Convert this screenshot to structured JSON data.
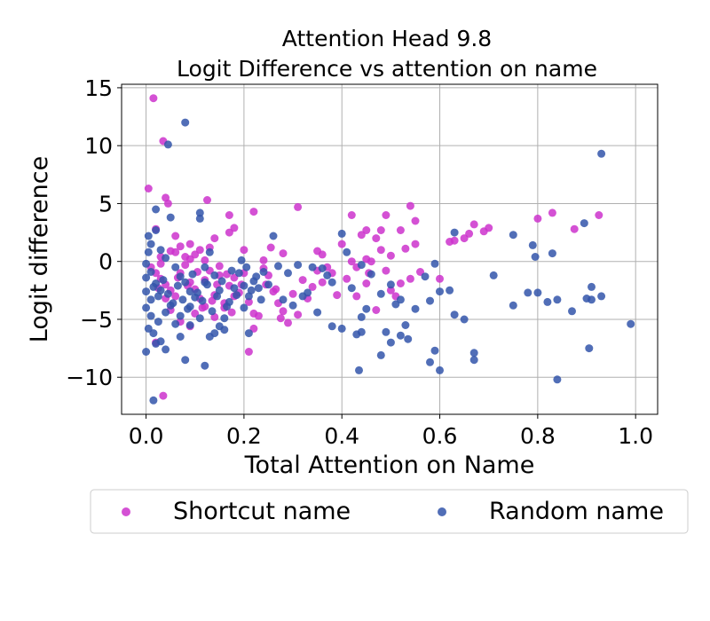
{
  "chart_data": {
    "type": "scatter",
    "title": "Attention Head 9.8",
    "subtitle": "Logit Difference vs attention on name",
    "xlabel": "Total Attention on Name",
    "ylabel": "Logit difference",
    "xlim": [
      -0.05,
      1.045
    ],
    "ylim": [
      -13.2,
      15.3
    ],
    "xticks": [
      0.0,
      0.2,
      0.4,
      0.6,
      0.8,
      1.0
    ],
    "xtick_labels": [
      "0.0",
      "0.2",
      "0.4",
      "0.6",
      "0.8",
      "1.0"
    ],
    "yticks": [
      -10,
      -5,
      0,
      5,
      10,
      15
    ],
    "ytick_labels": [
      "−10",
      "−5",
      "0",
      "5",
      "10",
      "15"
    ],
    "grid": true,
    "legend_position": "bottom, outside plot",
    "series": [
      {
        "name": "Shortcut name",
        "color": "#cc33cc",
        "points": [
          [
            0.015,
            14.1
          ],
          [
            0.035,
            10.4
          ],
          [
            0.04,
            5.5
          ],
          [
            0.045,
            5.0
          ],
          [
            0.125,
            5.3
          ],
          [
            0.005,
            6.3
          ],
          [
            0.17,
            4.0
          ],
          [
            0.22,
            4.3
          ],
          [
            0.31,
            4.7
          ],
          [
            0.18,
            2.9
          ],
          [
            0.17,
            2.5
          ],
          [
            0.14,
            2.0
          ],
          [
            0.255,
            1.2
          ],
          [
            0.11,
            1.0
          ],
          [
            0.02,
            2.8
          ],
          [
            0.06,
            2.2
          ],
          [
            0.09,
            1.5
          ],
          [
            0.13,
            1.2
          ],
          [
            0.06,
            0.8
          ],
          [
            0.08,
            0.4
          ],
          [
            0.2,
            1.0
          ],
          [
            0.24,
            0.1
          ],
          [
            0.28,
            0.7
          ],
          [
            0.35,
            0.9
          ],
          [
            0.36,
            0.6
          ],
          [
            0.4,
            1.5
          ],
          [
            0.42,
            4.0
          ],
          [
            0.44,
            2.3
          ],
          [
            0.47,
            2.0
          ],
          [
            0.48,
            2.7
          ],
          [
            0.49,
            4.0
          ],
          [
            0.52,
            2.7
          ],
          [
            0.54,
            4.8
          ],
          [
            0.55,
            3.5
          ],
          [
            0.45,
            0.2
          ],
          [
            0.455,
            -1.0
          ],
          [
            0.5,
            0.5
          ],
          [
            0.46,
            0.0
          ],
          [
            0.42,
            0.0
          ],
          [
            0.43,
            -0.5
          ],
          [
            0.53,
            1.1
          ],
          [
            0.55,
            1.5
          ],
          [
            0.54,
            -1.5
          ],
          [
            0.6,
            -1.5
          ],
          [
            0.62,
            1.7
          ],
          [
            0.63,
            1.8
          ],
          [
            0.65,
            2.0
          ],
          [
            0.66,
            2.4
          ],
          [
            0.67,
            3.2
          ],
          [
            0.69,
            2.6
          ],
          [
            0.7,
            2.9
          ],
          [
            0.8,
            3.7
          ],
          [
            0.83,
            4.2
          ],
          [
            0.875,
            2.8
          ],
          [
            0.925,
            4.0
          ],
          [
            0.01,
            -0.5
          ],
          [
            0.02,
            -1.0
          ],
          [
            0.03,
            -1.5
          ],
          [
            0.04,
            -2.0
          ],
          [
            0.05,
            -2.5
          ],
          [
            0.06,
            -3.0
          ],
          [
            0.07,
            -1.0
          ],
          [
            0.08,
            -0.3
          ],
          [
            0.09,
            -1.8
          ],
          [
            0.1,
            -2.4
          ],
          [
            0.11,
            -3.2
          ],
          [
            0.12,
            -1.6
          ],
          [
            0.13,
            -0.8
          ],
          [
            0.14,
            -2.9
          ],
          [
            0.15,
            -1.2
          ],
          [
            0.16,
            -3.6
          ],
          [
            0.17,
            -2.1
          ],
          [
            0.18,
            -1.4
          ],
          [
            0.19,
            -2.7
          ],
          [
            0.2,
            -1.0
          ],
          [
            0.21,
            -3.5
          ],
          [
            0.22,
            -4.5
          ],
          [
            0.23,
            -4.7
          ],
          [
            0.22,
            -5.8
          ],
          [
            0.21,
            -7.8
          ],
          [
            0.25,
            -1.2
          ],
          [
            0.26,
            -2.6
          ],
          [
            0.27,
            -3.6
          ],
          [
            0.28,
            -4.3
          ],
          [
            0.29,
            -5.3
          ],
          [
            0.3,
            -2.8
          ],
          [
            0.31,
            -4.6
          ],
          [
            0.32,
            -1.6
          ],
          [
            0.33,
            -3.2
          ],
          [
            0.34,
            -2.2
          ],
          [
            0.35,
            -0.8
          ],
          [
            0.36,
            -1.8
          ],
          [
            0.37,
            -0.5
          ],
          [
            0.38,
            -1.0
          ],
          [
            0.39,
            -2.9
          ],
          [
            0.41,
            -1.5
          ],
          [
            0.43,
            -3.0
          ],
          [
            0.45,
            -1.9
          ],
          [
            0.47,
            -4.2
          ],
          [
            0.49,
            -0.8
          ],
          [
            0.02,
            -7.0
          ],
          [
            0.035,
            -11.6
          ],
          [
            0.05,
            -4.2
          ],
          [
            0.07,
            -5.2
          ],
          [
            0.09,
            -5.6
          ],
          [
            0.1,
            -4.5
          ],
          [
            0.12,
            -3.9
          ],
          [
            0.14,
            -4.8
          ],
          [
            0.16,
            -4.0
          ],
          [
            0.18,
            -3.0
          ],
          [
            0.03,
            0.4
          ],
          [
            0.05,
            0.9
          ],
          [
            0.07,
            1.3
          ],
          [
            0.09,
            0.2
          ],
          [
            0.1,
            0.6
          ],
          [
            0.12,
            0.1
          ],
          [
            0.15,
            -0.4
          ],
          [
            0.03,
            -0.2
          ],
          [
            0.04,
            -3.2
          ],
          [
            0.025,
            -2.3
          ],
          [
            0.065,
            -1.4
          ],
          [
            0.085,
            -2.1
          ],
          [
            0.105,
            -0.9
          ],
          [
            0.115,
            -4.0
          ],
          [
            0.135,
            -3.4
          ],
          [
            0.145,
            -2.0
          ],
          [
            0.165,
            -1.1
          ],
          [
            0.175,
            -4.4
          ],
          [
            0.195,
            -2.0
          ],
          [
            0.24,
            -0.6
          ],
          [
            0.245,
            -2.0
          ],
          [
            0.265,
            -2.4
          ],
          [
            0.275,
            -4.9
          ],
          [
            0.5,
            -2.5
          ],
          [
            0.52,
            -1.9
          ],
          [
            0.56,
            -0.9
          ],
          [
            0.51,
            -3.0
          ],
          [
            0.45,
            2.7
          ],
          [
            0.48,
            1.0
          ]
        ]
      },
      {
        "name": "Random name",
        "color": "#3355aa",
        "points": [
          [
            0.08,
            12.0
          ],
          [
            0.045,
            10.1
          ],
          [
            0.015,
            -12.0
          ],
          [
            0.84,
            -10.2
          ],
          [
            0.435,
            -9.4
          ],
          [
            0.6,
            -9.4
          ],
          [
            0.12,
            -9.0
          ],
          [
            0.08,
            -8.5
          ],
          [
            0.04,
            -7.6
          ],
          [
            0.0,
            -7.8
          ],
          [
            0.02,
            -7.1
          ],
          [
            0.03,
            -6.9
          ],
          [
            0.005,
            -5.8
          ],
          [
            0.07,
            -6.5
          ],
          [
            0.13,
            -6.5
          ],
          [
            0.16,
            -5.9
          ],
          [
            0.21,
            -6.2
          ],
          [
            0.25,
            -2.0
          ],
          [
            0.3,
            -3.8
          ],
          [
            0.35,
            -4.4
          ],
          [
            0.38,
            -5.6
          ],
          [
            0.4,
            -5.8
          ],
          [
            0.43,
            -6.3
          ],
          [
            0.44,
            -6.1
          ],
          [
            0.48,
            -8.1
          ],
          [
            0.49,
            -6.1
          ],
          [
            0.5,
            -7.0
          ],
          [
            0.52,
            -6.4
          ],
          [
            0.53,
            -5.5
          ],
          [
            0.535,
            -6.7
          ],
          [
            0.58,
            -8.7
          ],
          [
            0.59,
            -7.7
          ],
          [
            0.67,
            -7.9
          ],
          [
            0.67,
            -8.5
          ],
          [
            0.905,
            -7.5
          ],
          [
            0.78,
            -2.7
          ],
          [
            0.8,
            -2.7
          ],
          [
            0.82,
            -3.5
          ],
          [
            0.84,
            -3.3
          ],
          [
            0.87,
            -4.3
          ],
          [
            0.9,
            -3.2
          ],
          [
            0.91,
            -3.3
          ],
          [
            0.91,
            -2.2
          ],
          [
            0.93,
            -3.0
          ],
          [
            0.99,
            -5.4
          ],
          [
            0.75,
            -3.8
          ],
          [
            0.63,
            -4.6
          ],
          [
            0.65,
            -5.0
          ],
          [
            0.6,
            -2.6
          ],
          [
            0.58,
            -3.4
          ],
          [
            0.62,
            -2.5
          ],
          [
            0.59,
            -0.2
          ],
          [
            0.57,
            -1.3
          ],
          [
            0.63,
            2.5
          ],
          [
            0.71,
            -1.2
          ],
          [
            0.75,
            2.3
          ],
          [
            0.79,
            1.4
          ],
          [
            0.795,
            0.4
          ],
          [
            0.83,
            0.7
          ],
          [
            0.895,
            3.3
          ],
          [
            0.93,
            9.3
          ],
          [
            0.4,
            2.4
          ],
          [
            0.41,
            0.8
          ],
          [
            0.44,
            -0.3
          ],
          [
            0.46,
            -1.1
          ],
          [
            0.48,
            -2.8
          ],
          [
            0.5,
            -2.0
          ],
          [
            0.51,
            -3.7
          ],
          [
            0.52,
            -3.3
          ],
          [
            0.55,
            -4.1
          ],
          [
            0.44,
            -4.8
          ],
          [
            0.45,
            -4.1
          ],
          [
            0.42,
            -2.3
          ],
          [
            0.38,
            -1.8
          ],
          [
            0.37,
            -1.2
          ],
          [
            0.36,
            -0.6
          ],
          [
            0.34,
            -0.5
          ],
          [
            0.33,
            -2.7
          ],
          [
            0.32,
            -3.0
          ],
          [
            0.31,
            -0.3
          ],
          [
            0.29,
            -1.0
          ],
          [
            0.28,
            -3.3
          ],
          [
            0.26,
            2.2
          ],
          [
            0.24,
            -0.9
          ],
          [
            0.23,
            -2.3
          ],
          [
            0.22,
            -1.7
          ],
          [
            0.21,
            -3.0
          ],
          [
            0.2,
            -2.1
          ],
          [
            0.19,
            -1.0
          ],
          [
            0.18,
            -2.3
          ],
          [
            0.17,
            -3.5
          ],
          [
            0.16,
            -4.9
          ],
          [
            0.15,
            -2.5
          ],
          [
            0.14,
            -1.2
          ],
          [
            0.13,
            0.8
          ],
          [
            0.12,
            -0.5
          ],
          [
            0.11,
            4.2
          ],
          [
            0.11,
            3.7
          ],
          [
            0.05,
            3.8
          ],
          [
            0.02,
            4.5
          ],
          [
            0.02,
            2.7
          ],
          [
            0.01,
            1.5
          ],
          [
            0.005,
            2.2
          ],
          [
            0.03,
            1.0
          ],
          [
            0.04,
            0.3
          ],
          [
            0.06,
            -0.5
          ],
          [
            0.07,
            -1.3
          ],
          [
            0.08,
            -1.8
          ],
          [
            0.09,
            -2.6
          ],
          [
            0.1,
            -3.1
          ],
          [
            0.09,
            -3.9
          ],
          [
            0.07,
            -4.7
          ],
          [
            0.06,
            -5.4
          ],
          [
            0.05,
            -3.8
          ],
          [
            0.04,
            -4.4
          ],
          [
            0.03,
            -2.5
          ],
          [
            0.02,
            -1.9
          ],
          [
            0.01,
            -3.3
          ],
          [
            0.0,
            -4.0
          ],
          [
            0.0,
            -2.6
          ],
          [
            0.0,
            -1.4
          ],
          [
            0.0,
            -0.2
          ],
          [
            0.005,
            0.8
          ],
          [
            0.01,
            -0.9
          ],
          [
            0.015,
            -2.2
          ],
          [
            0.025,
            -3.0
          ],
          [
            0.035,
            -1.6
          ],
          [
            0.045,
            -2.8
          ],
          [
            0.055,
            -3.6
          ],
          [
            0.065,
            -2.1
          ],
          [
            0.075,
            -3.3
          ],
          [
            0.085,
            -4.1
          ],
          [
            0.095,
            -1.1
          ],
          [
            0.105,
            -2.7
          ],
          [
            0.115,
            -3.4
          ],
          [
            0.125,
            -2.0
          ],
          [
            0.135,
            -4.3
          ],
          [
            0.145,
            -3.0
          ],
          [
            0.155,
            -1.7
          ],
          [
            0.165,
            -3.9
          ],
          [
            0.175,
            -0.8
          ],
          [
            0.185,
            -2.9
          ],
          [
            0.195,
            0.1
          ],
          [
            0.205,
            -0.5
          ],
          [
            0.215,
            -2.5
          ],
          [
            0.225,
            -1.3
          ],
          [
            0.235,
            -3.3
          ],
          [
            0.15,
            -5.6
          ],
          [
            0.11,
            -4.9
          ],
          [
            0.09,
            -5.5
          ],
          [
            0.14,
            -6.2
          ],
          [
            0.025,
            -5.2
          ],
          [
            0.015,
            -6.2
          ],
          [
            0.01,
            -4.7
          ],
          [
            0.2,
            -4.0
          ],
          [
            0.12,
            -1.8
          ],
          [
            0.27,
            -0.4
          ]
        ]
      }
    ]
  }
}
